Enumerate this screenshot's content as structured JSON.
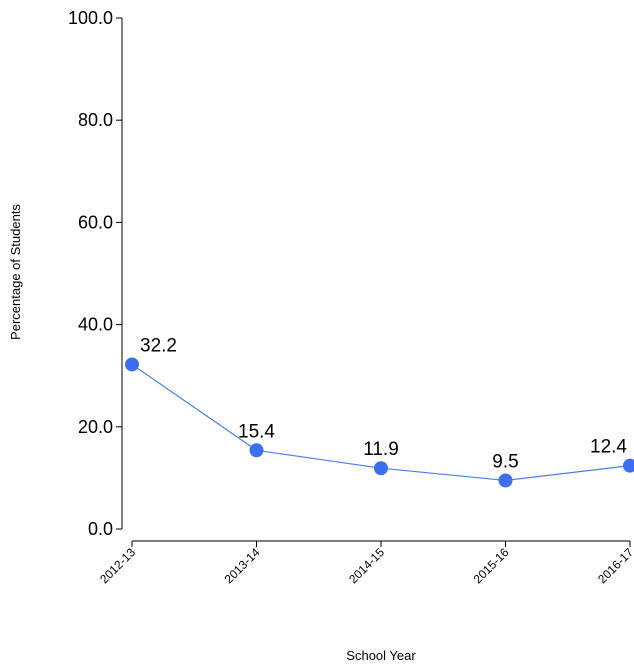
{
  "chart_data": {
    "type": "line",
    "title": "",
    "xlabel": "School Year",
    "ylabel": "Percentage of Students",
    "categories": [
      "2012-13",
      "2013-14",
      "2014-15",
      "2015-16",
      "2016-17"
    ],
    "values": [
      32.2,
      15.4,
      11.9,
      9.5,
      12.4
    ],
    "data_labels": [
      "32.2",
      "15.4",
      "11.9",
      "9.5",
      "12.4"
    ],
    "ylim": [
      0,
      100
    ],
    "yticks": [
      "0.0",
      "20.0",
      "40.0",
      "60.0",
      "80.0",
      "100.0"
    ],
    "grid": false,
    "legend": "none",
    "colors": {
      "line": "#4a7ff0",
      "marker": "#3b6ff0",
      "axis": "#000000"
    }
  }
}
